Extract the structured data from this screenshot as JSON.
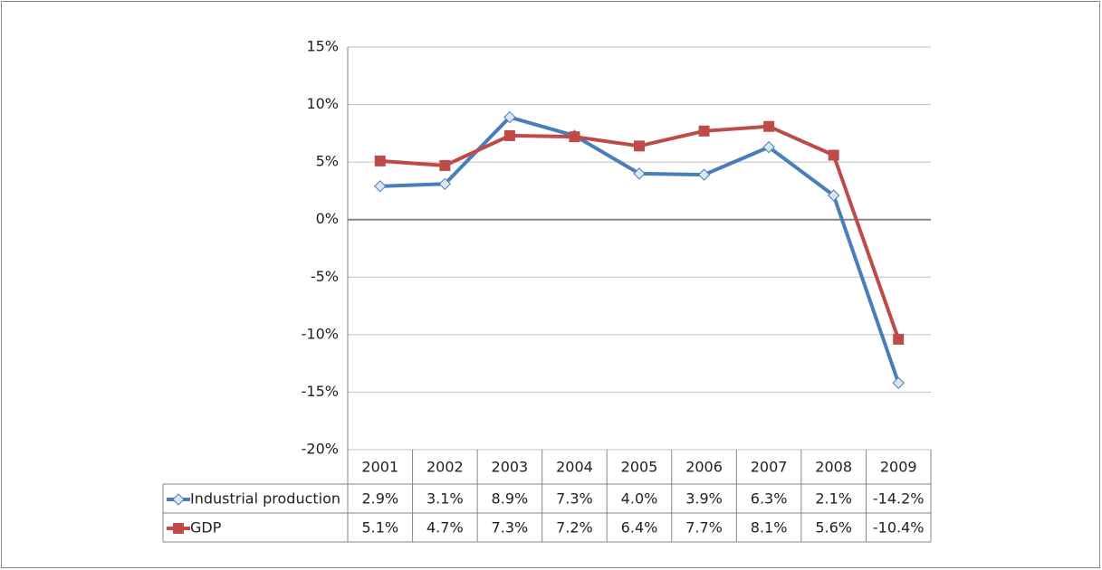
{
  "chart_data": {
    "type": "line",
    "categories": [
      "2001",
      "2002",
      "2003",
      "2004",
      "2005",
      "2006",
      "2007",
      "2008",
      "2009"
    ],
    "series": [
      {
        "name": "Industrial production",
        "color": "#4a7ebb",
        "marker": "diamond",
        "values": [
          2.9,
          3.1,
          8.9,
          7.3,
          4.0,
          3.9,
          6.3,
          2.1,
          -14.2
        ],
        "value_labels": [
          "2.9%",
          "3.1%",
          "8.9%",
          "7.3%",
          "4.0%",
          "3.9%",
          "6.3%",
          "2.1%",
          "-14.2%"
        ]
      },
      {
        "name": "GDP",
        "color": "#be4b48",
        "marker": "square",
        "values": [
          5.1,
          4.7,
          7.3,
          7.2,
          6.4,
          7.7,
          8.1,
          5.6,
          -10.4
        ],
        "value_labels": [
          "5.1%",
          "4.7%",
          "7.3%",
          "7.2%",
          "6.4%",
          "7.7%",
          "8.1%",
          "5.6%",
          "-10.4%"
        ]
      }
    ],
    "ylim": [
      -20,
      15
    ],
    "yticks": [
      {
        "value": -20,
        "label": "-20%"
      },
      {
        "value": -15,
        "label": "-15%"
      },
      {
        "value": -10,
        "label": "-10%"
      },
      {
        "value": -5,
        "label": "-5%"
      },
      {
        "value": 0,
        "label": "0%"
      },
      {
        "value": 5,
        "label": "5%"
      },
      {
        "value": 10,
        "label": "10%"
      },
      {
        "value": 15,
        "label": "15%"
      }
    ],
    "grid": true,
    "data_table": true
  }
}
